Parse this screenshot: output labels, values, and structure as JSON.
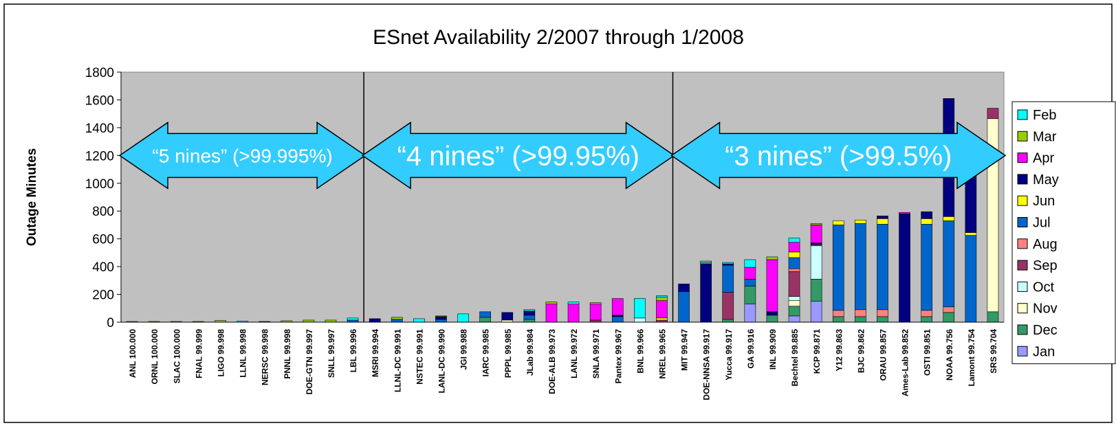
{
  "chart_data": {
    "type": "bar",
    "stacked": true,
    "title": "ESnet Availability 2/2007 through 1/2008",
    "ylabel": "Outage Minutes",
    "xlabel": "",
    "ylim": [
      0,
      1800
    ],
    "yticks": [
      0,
      200,
      400,
      600,
      800,
      1000,
      1200,
      1400,
      1600,
      1800
    ],
    "grid": false,
    "legend_position": "right",
    "categories": [
      "ANL 100.000",
      "ORNL 100.000",
      "SLAC 100.000",
      "FNAL 99.999",
      "LIGO 99.998",
      "LLNL 99.998",
      "NERSC 99.998",
      "PNNL 99.998",
      "DOE-GTN 99.997",
      "SNLL 99.997",
      "LBL 99.996",
      "MSRI 99.994",
      "LLNL-DC 99.991",
      "NSTEC 99.991",
      "LANL-DC 99.990",
      "JGI 99.988",
      "IARC 99.985",
      "PPPL 99.985",
      "JLab 99.984",
      "DOE-ALB 99.973",
      "LANL 99.972",
      "SNLA 99.971",
      "Pantex 99.967",
      "BNL 99.966",
      "NREL 99.965",
      "MIT 99.947",
      "DOE-NNSA 99.917",
      "Yucca 99.917",
      "GA 99.916",
      "INL 99.909",
      "Bechtel 99.885",
      "KCP 99.871",
      "Y12 99.863",
      "BJC 99.862",
      "ORAU 99.857",
      "Ames-Lab 99.852",
      "OSTI 99.851",
      "NOAA 99.756",
      "Lamont 99.754",
      "SRS 99.704"
    ],
    "series": [
      {
        "name": "Jan",
        "color": "#9999ff",
        "values": [
          0,
          0,
          0,
          0,
          0,
          0,
          0,
          0,
          0,
          0,
          0,
          0,
          0,
          0,
          0,
          0,
          0,
          0,
          0,
          0,
          0,
          0,
          0,
          0,
          0,
          0,
          0,
          0,
          130,
          0,
          45,
          150,
          0,
          0,
          0,
          0,
          0,
          0,
          0,
          0
        ]
      },
      {
        "name": "Dec",
        "color": "#339966",
        "values": [
          0,
          0,
          0,
          0,
          0,
          0,
          0,
          0,
          0,
          0,
          0,
          0,
          0,
          0,
          0,
          0,
          35,
          0,
          20,
          0,
          0,
          0,
          0,
          0,
          0,
          0,
          0,
          20,
          130,
          50,
          70,
          160,
          40,
          40,
          40,
          0,
          40,
          70,
          0,
          75
        ]
      },
      {
        "name": "Nov",
        "color": "#ffffcc",
        "values": [
          0,
          0,
          0,
          0,
          0,
          0,
          0,
          0,
          0,
          0,
          0,
          0,
          0,
          0,
          0,
          0,
          0,
          15,
          0,
          0,
          0,
          0,
          0,
          0,
          0,
          0,
          0,
          0,
          0,
          0,
          40,
          0,
          0,
          0,
          0,
          0,
          0,
          0,
          0,
          1390
        ]
      },
      {
        "name": "Oct",
        "color": "#ccffff",
        "values": [
          0,
          0,
          0,
          0,
          0,
          0,
          0,
          0,
          0,
          0,
          0,
          0,
          0,
          0,
          0,
          0,
          0,
          0,
          0,
          0,
          0,
          0,
          0,
          30,
          0,
          0,
          0,
          0,
          0,
          0,
          30,
          240,
          0,
          0,
          0,
          0,
          0,
          0,
          0,
          0
        ]
      },
      {
        "name": "Sep",
        "color": "#993366",
        "values": [
          0,
          0,
          0,
          0,
          0,
          0,
          0,
          0,
          0,
          0,
          0,
          0,
          0,
          0,
          0,
          0,
          0,
          0,
          0,
          0,
          0,
          15,
          0,
          0,
          15,
          0,
          0,
          195,
          0,
          0,
          180,
          10,
          0,
          0,
          0,
          0,
          0,
          0,
          0,
          75
        ]
      },
      {
        "name": "Aug",
        "color": "#ff8080",
        "values": [
          0,
          0,
          0,
          0,
          0,
          0,
          0,
          0,
          0,
          0,
          0,
          0,
          0,
          0,
          0,
          0,
          0,
          0,
          0,
          0,
          0,
          0,
          0,
          0,
          0,
          0,
          0,
          0,
          0,
          0,
          20,
          0,
          45,
          50,
          50,
          0,
          45,
          40,
          0,
          0
        ]
      },
      {
        "name": "Jul",
        "color": "#0066cc",
        "values": [
          0,
          0,
          0,
          0,
          0,
          0,
          5,
          0,
          0,
          0,
          15,
          0,
          20,
          0,
          20,
          0,
          40,
          0,
          30,
          0,
          0,
          0,
          40,
          0,
          0,
          220,
          0,
          195,
          50,
          0,
          80,
          0,
          615,
          620,
          615,
          0,
          620,
          620,
          625,
          0
        ]
      },
      {
        "name": "Jun",
        "color": "#ffff00",
        "values": [
          0,
          0,
          0,
          0,
          0,
          0,
          0,
          0,
          0,
          0,
          0,
          0,
          0,
          0,
          0,
          0,
          0,
          0,
          0,
          0,
          0,
          0,
          0,
          0,
          15,
          0,
          0,
          0,
          0,
          0,
          40,
          0,
          30,
          25,
          40,
          0,
          40,
          30,
          20,
          0
        ]
      },
      {
        "name": "May",
        "color": "#000080",
        "values": [
          0,
          0,
          0,
          0,
          0,
          0,
          0,
          0,
          0,
          0,
          0,
          25,
          0,
          0,
          20,
          0,
          0,
          55,
          30,
          0,
          0,
          0,
          10,
          0,
          0,
          55,
          420,
          10,
          0,
          25,
          0,
          10,
          0,
          0,
          20,
          780,
          50,
          850,
          660,
          0
        ]
      },
      {
        "name": "Apr",
        "color": "#ff00ff",
        "values": [
          0,
          0,
          0,
          0,
          0,
          0,
          0,
          0,
          0,
          0,
          0,
          0,
          0,
          0,
          0,
          0,
          0,
          0,
          0,
          130,
          130,
          115,
          120,
          0,
          125,
          0,
          0,
          0,
          85,
          375,
          70,
          130,
          0,
          0,
          0,
          10,
          0,
          0,
          0,
          0
        ]
      },
      {
        "name": "Mar",
        "color": "#99cc00",
        "values": [
          5,
          5,
          5,
          5,
          12,
          0,
          0,
          10,
          15,
          15,
          0,
          0,
          15,
          0,
          5,
          0,
          0,
          0,
          0,
          15,
          0,
          10,
          0,
          0,
          25,
          0,
          10,
          0,
          0,
          20,
          0,
          10,
          0,
          0,
          0,
          0,
          0,
          0,
          0,
          0
        ]
      },
      {
        "name": "Feb",
        "color": "#00ffff",
        "values": [
          0,
          0,
          0,
          0,
          0,
          8,
          0,
          0,
          0,
          0,
          15,
          0,
          0,
          25,
          0,
          60,
          0,
          0,
          10,
          0,
          15,
          0,
          0,
          140,
          10,
          0,
          10,
          10,
          55,
          0,
          30,
          0,
          0,
          0,
          0,
          0,
          0,
          0,
          0,
          0
        ]
      }
    ],
    "legend_order": [
      "Feb",
      "Mar",
      "Apr",
      "May",
      "Jun",
      "Jul",
      "Aug",
      "Sep",
      "Oct",
      "Nov",
      "Dec",
      "Jan"
    ],
    "annotations": [
      {
        "text": "“5 nines” (>99.995%)",
        "from_index": 0,
        "to_index": 10,
        "y": 1200
      },
      {
        "text": "“4 nines” (>99.95%)",
        "from_index": 11,
        "to_index": 24,
        "y": 1200
      },
      {
        "text": "“3 nines” (>99.5%)",
        "from_index": 25,
        "to_index": 39,
        "y": 1200
      }
    ],
    "dividers_after_index": [
      10,
      24
    ]
  }
}
